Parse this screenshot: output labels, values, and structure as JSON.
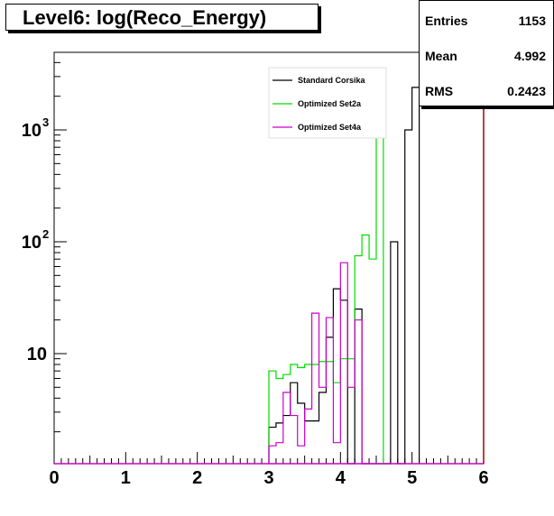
{
  "title": "Level6:  log(Reco_Energy)",
  "stats": {
    "entries_label": "Entries",
    "entries_value": "1153",
    "mean_label": "Mean",
    "mean_value": "4.992",
    "rms_label": "RMS",
    "rms_value": "0.2423"
  },
  "colors": {
    "Standard Corsika": "#000000",
    "Optimized Set2a": "#00dd00",
    "Optimized Set4a": "#cc00cc",
    "frame": "#000000"
  },
  "chart_data": {
    "type": "line",
    "title": "Level6:  log(Reco_Energy)",
    "xlabel": "",
    "ylabel": "",
    "xlim": [
      0,
      6
    ],
    "ylim": [
      1,
      5000
    ],
    "yscale": "log",
    "x_ticks": [
      "0",
      "1",
      "2",
      "3",
      "4",
      "5",
      "6"
    ],
    "y_ticks": [
      {
        "value": 10,
        "label": "10"
      },
      {
        "value": 100,
        "label": "10",
        "exp": "2"
      },
      {
        "value": 1000,
        "label": "10",
        "exp": "3"
      }
    ],
    "legend": [
      "Standard Corsika",
      "Optimized Set2a",
      "Optimized Set4a"
    ],
    "grid": false,
    "bin_width": 0.1,
    "series": [
      {
        "name": "Standard Corsika",
        "bins": [
          [
            3.0,
            2.2
          ],
          [
            3.1,
            2.4
          ],
          [
            3.2,
            2.8
          ],
          [
            3.3,
            5.5
          ],
          [
            3.4,
            3.6
          ],
          [
            3.5,
            2.5
          ],
          [
            3.6,
            2.5
          ],
          [
            3.7,
            4.5
          ],
          [
            3.8,
            14
          ],
          [
            3.9,
            38
          ],
          [
            4.0,
            30
          ],
          [
            4.1,
            1.0
          ],
          [
            4.2,
            25
          ],
          [
            4.3,
            1.0
          ],
          [
            4.4,
            1.0
          ],
          [
            4.5,
            1.0
          ],
          [
            4.6,
            1.0
          ],
          [
            4.7,
            100
          ],
          [
            4.8,
            1.0
          ],
          [
            4.9,
            1000
          ],
          [
            5.0,
            2400
          ]
        ]
      },
      {
        "name": "Optimized Set2a",
        "bins": [
          [
            3.0,
            7
          ],
          [
            3.1,
            6
          ],
          [
            3.2,
            6.5
          ],
          [
            3.3,
            8
          ],
          [
            3.4,
            7.5
          ],
          [
            3.5,
            8
          ],
          [
            3.6,
            8
          ],
          [
            3.7,
            8.5
          ],
          [
            3.8,
            8.5
          ],
          [
            3.9,
            5.5
          ],
          [
            4.0,
            9
          ],
          [
            4.1,
            9
          ],
          [
            4.2,
            75
          ],
          [
            4.3,
            115
          ],
          [
            4.4,
            70
          ],
          [
            4.5,
            900
          ],
          [
            4.6,
            1.0
          ]
        ]
      },
      {
        "name": "Optimized Set4a",
        "bins": [
          [
            3.0,
            1.5
          ],
          [
            3.1,
            1.6
          ],
          [
            3.2,
            4.5
          ],
          [
            3.3,
            2.8
          ],
          [
            3.4,
            1.5
          ],
          [
            3.5,
            3.2
          ],
          [
            3.6,
            23
          ],
          [
            3.7,
            5
          ],
          [
            3.8,
            21
          ],
          [
            3.9,
            1.6
          ],
          [
            4.0,
            65
          ],
          [
            4.1,
            5
          ],
          [
            4.2,
            20
          ],
          [
            4.3,
            1.0
          ]
        ]
      }
    ]
  }
}
